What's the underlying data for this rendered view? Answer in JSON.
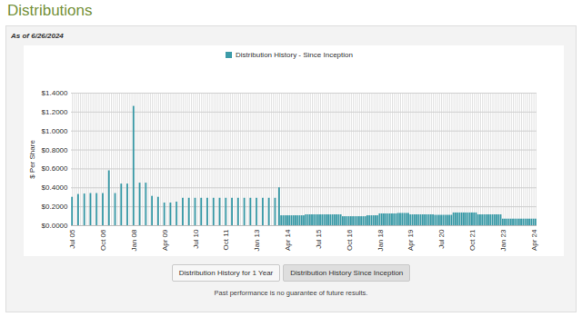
{
  "chart_data": {
    "type": "bar",
    "title": "Distributions",
    "subtitle": "As of 6/26/2024",
    "ylabel": "$ Per Share",
    "buttons": [
      "Distribution History for 1 Year",
      "Distribution History Since Inception"
    ],
    "footnote": "Past performance is no guarantee of future results.",
    "legend": "top",
    "grid": true,
    "ylim": [
      0,
      1.4
    ],
    "yticks": [
      {
        "value": 0,
        "label": "$0.0000"
      },
      {
        "value": 0.2,
        "label": "$0.2000"
      },
      {
        "value": 0.4,
        "label": "$0.4000"
      },
      {
        "value": 0.6,
        "label": "$0.6000"
      },
      {
        "value": 0.8,
        "label": "$0.8000"
      },
      {
        "value": 1.0,
        "label": "$1.0000"
      },
      {
        "value": 1.2,
        "label": "$1.2000"
      },
      {
        "value": 1.4,
        "label": "$1.4000"
      }
    ],
    "categories": [
      "Jul 05",
      null,
      null,
      null,
      null,
      null,
      null,
      null,
      null,
      null,
      null,
      null,
      null,
      null,
      null,
      "Oct 06",
      null,
      null,
      null,
      null,
      null,
      null,
      null,
      null,
      null,
      null,
      null,
      null,
      null,
      null,
      "Jan 08",
      null,
      null,
      null,
      null,
      null,
      null,
      null,
      null,
      null,
      null,
      null,
      null,
      null,
      null,
      "Apr 09",
      null,
      null,
      null,
      null,
      null,
      null,
      null,
      null,
      null,
      null,
      null,
      null,
      null,
      null,
      "Jul 10",
      null,
      null,
      null,
      null,
      null,
      null,
      null,
      null,
      null,
      null,
      null,
      null,
      null,
      null,
      "Oct 11",
      null,
      null,
      null,
      null,
      null,
      null,
      null,
      null,
      null,
      null,
      null,
      null,
      null,
      null,
      "Jan 13",
      null,
      null,
      null,
      null,
      null,
      null,
      null,
      null,
      null,
      null,
      null,
      null,
      null,
      null,
      "Apr 14",
      null,
      null,
      null,
      null,
      null,
      null,
      null,
      null,
      null,
      null,
      null,
      null,
      null,
      null,
      "Jul 15",
      null,
      null,
      null,
      null,
      null,
      null,
      null,
      null,
      null,
      null,
      null,
      null,
      null,
      null,
      "Oct 16",
      null,
      null,
      null,
      null,
      null,
      null,
      null,
      null,
      null,
      null,
      null,
      null,
      null,
      null,
      "Jan 18",
      null,
      null,
      null,
      null,
      null,
      null,
      null,
      null,
      null,
      null,
      null,
      null,
      null,
      null,
      "Apr 19",
      null,
      null,
      null,
      null,
      null,
      null,
      null,
      null,
      null,
      null,
      null,
      null,
      null,
      null,
      "Jul 20",
      null,
      null,
      null,
      null,
      null,
      null,
      null,
      null,
      null,
      null,
      null,
      null,
      null,
      null,
      "Oct 21",
      null,
      null,
      null,
      null,
      null,
      null,
      null,
      null,
      null,
      null,
      null,
      null,
      null,
      null,
      "Jan 23",
      null,
      null,
      null,
      null,
      null,
      null,
      null,
      null,
      null,
      null,
      null,
      null,
      null,
      null,
      "Apr 24",
      null
    ],
    "series": [
      {
        "name": "Distribution History - Since Inception",
        "color": "#3c9ba8",
        "values": [
          0.3,
          null,
          null,
          0.33,
          null,
          null,
          0.335,
          null,
          null,
          0.34,
          null,
          null,
          0.34,
          null,
          null,
          0.34,
          null,
          null,
          0.58,
          null,
          null,
          0.34,
          null,
          null,
          0.44,
          null,
          null,
          0.44,
          null,
          null,
          1.26,
          null,
          null,
          0.45,
          null,
          null,
          0.45,
          null,
          null,
          0.31,
          null,
          null,
          0.3,
          null,
          null,
          0.24,
          null,
          null,
          0.24,
          null,
          null,
          0.25,
          null,
          null,
          0.29,
          null,
          null,
          0.29,
          null,
          null,
          0.29,
          null,
          null,
          0.29,
          null,
          null,
          0.29,
          null,
          null,
          0.29,
          null,
          null,
          0.29,
          null,
          null,
          0.29,
          null,
          null,
          0.29,
          null,
          null,
          0.29,
          null,
          null,
          0.29,
          null,
          null,
          0.29,
          null,
          null,
          0.29,
          null,
          null,
          0.29,
          null,
          null,
          0.29,
          null,
          null,
          0.29,
          null,
          0.4,
          0.105,
          0.105,
          0.105,
          0.105,
          0.105,
          0.105,
          0.105,
          0.105,
          0.105,
          0.105,
          0.105,
          0.105,
          0.115,
          0.115,
          0.115,
          0.115,
          0.115,
          0.115,
          0.115,
          0.115,
          0.115,
          0.115,
          0.115,
          0.115,
          0.115,
          0.115,
          0.115,
          0.115,
          0.115,
          0.115,
          0.095,
          0.095,
          0.095,
          0.095,
          0.095,
          0.095,
          0.095,
          0.095,
          0.095,
          0.095,
          0.095,
          0.095,
          0.105,
          0.105,
          0.105,
          0.105,
          0.105,
          0.105,
          0.125,
          0.125,
          0.125,
          0.125,
          0.125,
          0.125,
          0.125,
          0.125,
          0.125,
          0.13,
          0.13,
          0.13,
          0.13,
          0.13,
          0.13,
          0.115,
          0.115,
          0.115,
          0.115,
          0.115,
          0.115,
          0.115,
          0.115,
          0.115,
          0.115,
          0.115,
          0.115,
          0.11,
          0.11,
          0.11,
          0.11,
          0.11,
          0.11,
          0.11,
          0.11,
          0.11,
          0.135,
          0.135,
          0.135,
          0.135,
          0.135,
          0.135,
          0.135,
          0.135,
          0.135,
          0.135,
          0.135,
          0.135,
          0.115,
          0.115,
          0.115,
          0.115,
          0.115,
          0.115,
          0.115,
          0.115,
          0.115,
          0.115,
          0.115,
          0.115,
          0.07,
          0.07,
          0.07,
          0.07,
          0.07,
          0.07,
          0.07,
          0.07,
          0.07,
          0.07,
          0.07,
          0.07,
          0.07,
          0.07,
          0.07,
          0.07,
          0.07
        ]
      }
    ]
  }
}
